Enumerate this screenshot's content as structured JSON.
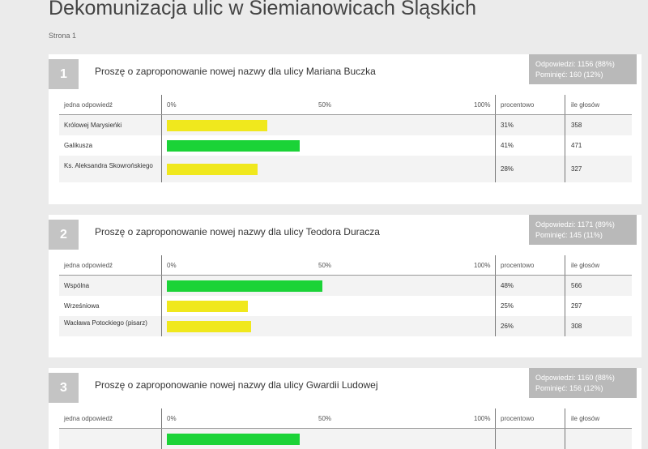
{
  "survey": {
    "title": "Dekomunizacja ulic w Siemianowicach Śląskich",
    "page_label": "Strona 1"
  },
  "table_headers": {
    "answer": "jedna odpowiedź",
    "scale_0": "0%",
    "scale_50": "50%",
    "scale_100": "100%",
    "percent": "procentowo",
    "votes": "ile głosów"
  },
  "colors": {
    "yellow": "#f0e81d",
    "green": "#1bd337"
  },
  "questions": [
    {
      "number": "1",
      "title": "Proszę o zaproponowanie nowej nazwy dla ulicy Mariana Buczka",
      "answered": "Odpowiedzi: 1156 (88%)",
      "skipped": "Pominięć: 160 (12%)",
      "rows": [
        {
          "label": "Królowej Marysieńki",
          "percent": "31%",
          "votes": "358",
          "fraction": 0.31,
          "color": "yellow"
        },
        {
          "label": "Galikusza",
          "percent": "41%",
          "votes": "471",
          "fraction": 0.41,
          "color": "green"
        },
        {
          "label": "Ks. Aleksandra Skowrońskiego",
          "percent": "28%",
          "votes": "327",
          "fraction": 0.28,
          "color": "yellow"
        }
      ]
    },
    {
      "number": "2",
      "title": "Proszę o zaproponowanie nowej nazwy dla ulicy Teodora Duracza",
      "answered": "Odpowiedzi: 1171 (89%)",
      "skipped": "Pominięć: 145 (11%)",
      "rows": [
        {
          "label": "Wspólna",
          "percent": "48%",
          "votes": "566",
          "fraction": 0.48,
          "color": "green"
        },
        {
          "label": "Wrześniowa",
          "percent": "25%",
          "votes": "297",
          "fraction": 0.25,
          "color": "yellow"
        },
        {
          "label": "Wacława Potockiego (pisarz)",
          "percent": "26%",
          "votes": "308",
          "fraction": 0.26,
          "color": "yellow"
        }
      ]
    },
    {
      "number": "3",
      "title": "Proszę o zaproponowanie nowej nazwy dla ulicy Gwardii Ludowej",
      "answered": "Odpowiedzi: 1160 (88%)",
      "skipped": "Pominięć: 156 (12%)",
      "rows": [
        {
          "label": "",
          "percent": "",
          "votes": "",
          "fraction": 0.41,
          "color": "green"
        }
      ]
    }
  ]
}
